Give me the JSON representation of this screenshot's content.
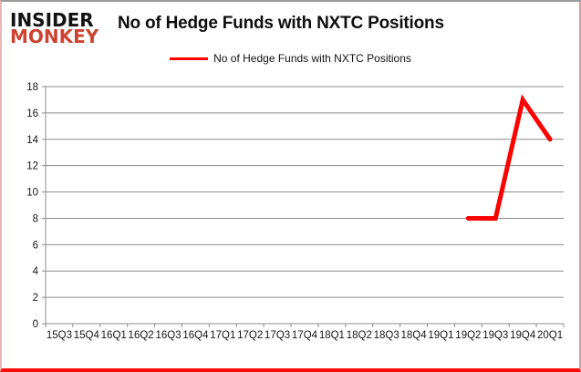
{
  "brand": {
    "line1": "INSIDER",
    "line2": "MONKEY"
  },
  "header": {
    "title": "No of Hedge Funds with NXTC Positions"
  },
  "legend": {
    "label": "No of Hedge Funds with NXTC Positions",
    "color": "#ff0000"
  },
  "colors": {
    "series_red": "#ff0000",
    "grid_gray": "#8c8c8c",
    "brand_red": "#cc4431",
    "frame_bottom_red": "#fb0d0a",
    "text_black": "#111111"
  },
  "chart_data": {
    "type": "line",
    "title": "No of Hedge Funds with NXTC Positions",
    "categories": [
      "15Q3",
      "15Q4",
      "16Q1",
      "16Q2",
      "16Q3",
      "16Q4",
      "17Q1",
      "17Q2",
      "17Q3",
      "17Q4",
      "18Q1",
      "18Q2",
      "18Q3",
      "18Q4",
      "19Q1",
      "19Q2",
      "19Q3",
      "19Q4",
      "20Q1"
    ],
    "series": [
      {
        "name": "No of Hedge Funds with NXTC Positions",
        "color": "#ff0000",
        "values": [
          null,
          null,
          null,
          null,
          null,
          null,
          null,
          null,
          null,
          null,
          null,
          null,
          null,
          null,
          null,
          8,
          8,
          17,
          14
        ]
      }
    ],
    "xlabel": "",
    "ylabel": "",
    "ylim": [
      0,
      18
    ],
    "ytick_step": 2,
    "grid": "horizontal",
    "legend_position": "top-center"
  }
}
